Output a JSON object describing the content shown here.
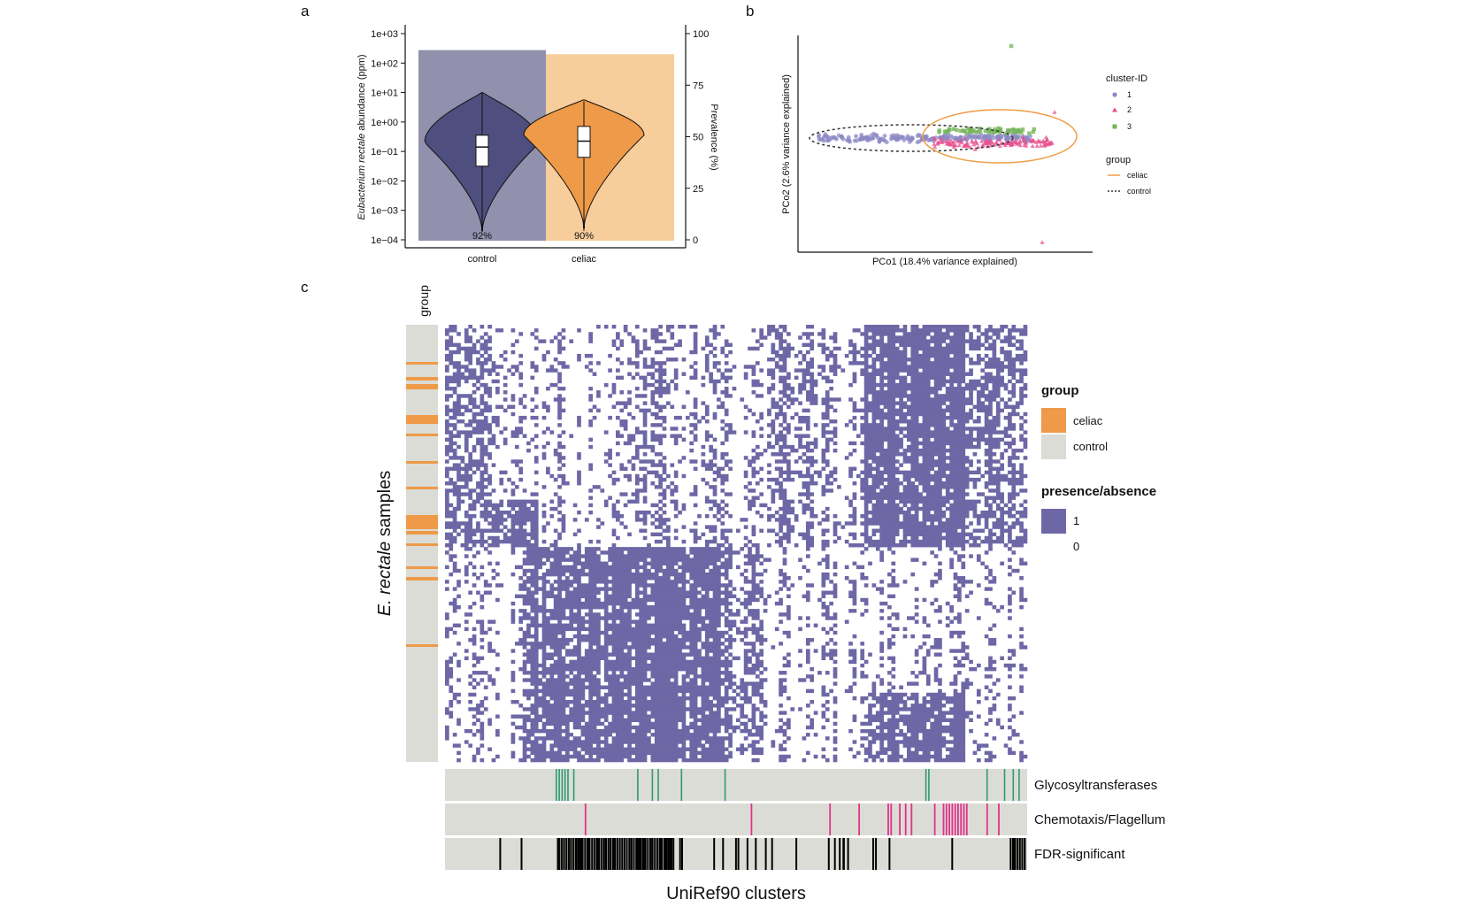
{
  "panels": {
    "a": "a",
    "b": "b",
    "c": "c"
  },
  "chart_data": [
    {
      "id": "a",
      "type": "violin",
      "ylabel_italic": "Eubacterium rectale",
      "ylabel_rest": " abundance (ppm)",
      "y2label": "Prevalence (%)",
      "y_scale": "log10",
      "ylim": [
        0.0001,
        1000
      ],
      "yticks": [
        "1e+03",
        "1e+02",
        "1e+01",
        "1e+00",
        "1e−01",
        "1e−02",
        "1e−03",
        "1e−04"
      ],
      "y2lim": [
        0,
        100
      ],
      "y2ticks": [
        "100",
        "75",
        "50",
        "25",
        "0"
      ],
      "categories": [
        "control",
        "celiac"
      ],
      "prevalence_values": [
        92,
        90
      ],
      "prevalence_labels": [
        "92%",
        "90%"
      ],
      "colors": {
        "control": "#4f4f7f",
        "control_bg": "#9190ad",
        "celiac": "#ee9a48",
        "celiac_bg": "#f6cd9b"
      },
      "box_log10": [
        {
          "q1": -1.5,
          "median": -0.85,
          "q3": -0.45,
          "whisker_low": -3.7,
          "whisker_high": 1.0
        },
        {
          "q1": -1.2,
          "median": -0.65,
          "q3": -0.15,
          "whisker_low": -3.7,
          "whisker_high": 0.7
        }
      ]
    },
    {
      "id": "b",
      "type": "scatter",
      "xlabel": "PCo1 (18.4% variance explained)",
      "ylabel": "PCo2 (2.6% variance explained)",
      "legend_placement": "right",
      "legend_cluster_title": "cluster-ID",
      "clusters": [
        {
          "name": "1",
          "color": "#8c88c4"
        },
        {
          "name": "2",
          "color": "#e8508f"
        },
        {
          "name": "3",
          "color": "#74b55a"
        }
      ],
      "legend_group_title": "group",
      "groups": [
        {
          "name": "celiac",
          "color": "#ef9e48",
          "line": "solid"
        },
        {
          "name": "control",
          "color": "#333333",
          "line": "dashed"
        }
      ]
    },
    {
      "id": "c",
      "type": "heatmap",
      "xlabel": "UniRef90 clusters",
      "ylabel_italic": "E. rectale",
      "ylabel_rest": "samples",
      "group_col_label": "group",
      "legend_group_title": "group",
      "legend_groups": [
        {
          "name": "celiac",
          "color": "#ee9a48"
        },
        {
          "name": "control",
          "color": "#dcdcd6"
        }
      ],
      "legend_pa_title": "presence/absence",
      "legend_pa": [
        {
          "name": "1",
          "color": "#6e67a6"
        },
        {
          "name": "0",
          "color": "#ffffff"
        }
      ],
      "annotation_tracks": [
        {
          "name": "Glycosyltransferases",
          "color": "#2e9a73"
        },
        {
          "name": "Chemotaxis/Flagellum",
          "color": "#e0338a"
        },
        {
          "name": "FDR-significant",
          "color": "#000000"
        }
      ]
    }
  ]
}
